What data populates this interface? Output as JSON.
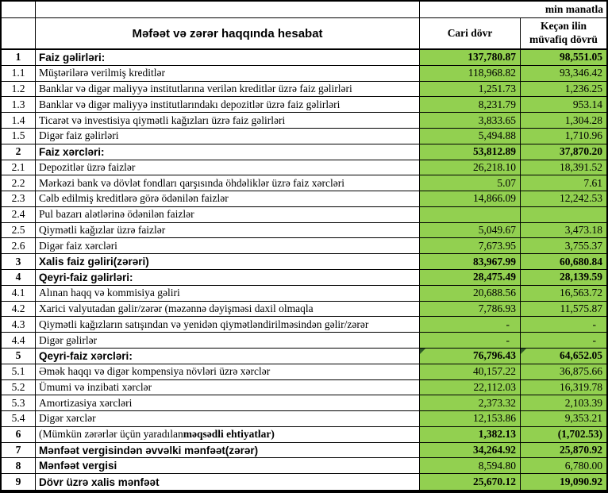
{
  "unit_label": "min manatla",
  "colors": {
    "cell_green": "#92D050",
    "flag_triangle": "#2F5A27",
    "border": "#000000"
  },
  "table": {
    "title_header": "Məfəət və zərər haqqında hesabat",
    "col_current": "Cari dövr",
    "col_previous": "Keçən ilin müvafiq dövrü",
    "rows": [
      {
        "no": "1",
        "label": "Faiz gəlirləri:",
        "cur": "137,780.87",
        "prev": "98,551.05",
        "bl": true,
        "bv": true
      },
      {
        "no": "1.1",
        "label": "Müştərilərə verilmiş kreditlər",
        "cur": "118,968.82",
        "prev": "93,346.42",
        "bl": false,
        "bv": false
      },
      {
        "no": "1.2",
        "label": "Banklar və digər maliyyə institutlarına verilən kreditlər üzrə faiz gəlirləri",
        "cur": "1,251.73",
        "prev": "1,236.25",
        "bl": false,
        "bv": false
      },
      {
        "no": "1.3",
        "label": "Banklar və digər maliyyə institutlarındakı depozitlər üzrə faiz gəlirləri",
        "cur": "8,231.79",
        "prev": "953.14",
        "bl": false,
        "bv": false
      },
      {
        "no": "1.4",
        "label": "Ticarət və investisiya qiymətli kağızları üzrə faiz gəlirləri",
        "cur": "3,833.65",
        "prev": "1,304.28",
        "bl": false,
        "bv": false
      },
      {
        "no": "1.5",
        "label": "Digər faiz gəlirləri",
        "cur": "5,494.88",
        "prev": "1,710.96",
        "bl": false,
        "bv": false
      },
      {
        "no": "2",
        "label": "Faiz xərcləri:",
        "cur": "53,812.89",
        "prev": "37,870.20",
        "bl": true,
        "bv": true
      },
      {
        "no": "2.1",
        "label": "Depozitlər üzrə faizlər",
        "cur": "26,218.10",
        "prev": "18,391.52",
        "bl": false,
        "bv": false
      },
      {
        "no": "2.2",
        "label": "Mərkəzi bank və dövlət fondları qarşısında öhdəliklər üzrə faiz xərcləri",
        "cur": "5.07",
        "prev": "7.61",
        "bl": false,
        "bv": false
      },
      {
        "no": "2.3",
        "label": "Cəlb edilmiş kreditlərə görə ödənilən faizlər",
        "cur": "14,866.09",
        "prev": "12,242.53",
        "bl": false,
        "bv": false
      },
      {
        "no": "2.4",
        "label": "Pul bazarı alətlərinə ödənilən faizlər",
        "cur": "",
        "prev": "",
        "bl": false,
        "bv": false
      },
      {
        "no": "2.5",
        "label": "Qiymətli kağızlar üzrə faizlər",
        "cur": "5,049.67",
        "prev": "3,473.18",
        "bl": false,
        "bv": false
      },
      {
        "no": "2.6",
        "label": "Digər faiz xərcləri",
        "cur": "7,673.95",
        "prev": "3,755.37",
        "bl": false,
        "bv": false
      },
      {
        "no": "3",
        "label": "Xalis faiz gəliri(zərəri)",
        "cur": "83,967.99",
        "prev": "60,680.84",
        "bl": true,
        "bv": true
      },
      {
        "no": "4",
        "label": "Qeyri-faiz gəlirləri:",
        "cur": "28,475.49",
        "prev": "28,139.59",
        "bl": true,
        "bv": true
      },
      {
        "no": "4.1",
        "label": "Alınan haqq və kommisiya gəliri",
        "cur": "20,688.56",
        "prev": "16,563.72",
        "bl": false,
        "bv": false
      },
      {
        "no": "4.2",
        "label": "Xarici valyutadan gəlir/zərər (məzənnə dəyişməsi daxil olmaqla",
        "cur": "7,786.93",
        "prev": "11,575.87",
        "bl": false,
        "bv": false
      },
      {
        "no": "4.3",
        "label": "Qiymətli kağızların satışından və yenidən qiymətləndirilməsindən gəlir/zərər",
        "cur": "-",
        "prev": "-",
        "bl": false,
        "bv": false
      },
      {
        "no": "4.4",
        "label": "Digər gəlirlər",
        "cur": "-",
        "prev": "-",
        "bl": false,
        "bv": false
      },
      {
        "no": "5",
        "label": "Qeyri-faiz xərcləri:",
        "cur": "76,796.43",
        "prev": "64,652.05",
        "bl": true,
        "bv": true,
        "flag": true
      },
      {
        "no": "5.1",
        "label": "Əmək haqqı və digər kompensiya növləri üzrə xərclər",
        "cur": "40,157.22",
        "prev": "36,875.66",
        "bl": false,
        "bv": false
      },
      {
        "no": "5.2",
        "label": "Ümumi və inzibati xərclər",
        "cur": "22,112.03",
        "prev": "16,319.78",
        "bl": false,
        "bv": false
      },
      {
        "no": "5.3",
        "label": "Amortizasiya xərcləri",
        "cur": "2,373.32",
        "prev": "2,103.39",
        "bl": false,
        "bv": false
      },
      {
        "no": "5.4",
        "label": "Digər xərclər",
        "cur": "12,153.86",
        "prev": "9,353.21",
        "bl": false,
        "bv": false
      },
      {
        "no": "6",
        "label": "(Mümkün zərərlər üçün yaradılan ",
        "strong": "məqsədli ehtiyatlar)",
        "cur": "1,382.13",
        "prev": "(1,702.53)",
        "bl": false,
        "bv": true
      },
      {
        "no": "7",
        "label": "Mənfəət vergisindən əvvəlki mənfəət(zərər)",
        "cur": "34,264.92",
        "prev": "25,870.92",
        "bl": true,
        "bv": true
      },
      {
        "no": "8",
        "label": "Mənfəət vergisi",
        "cur": "8,594.80",
        "prev": "6,780.00",
        "bl": true,
        "bv": false
      },
      {
        "no": "9",
        "label": "Dövr üzrə xalis mənfəət",
        "cur": "25,670.12",
        "prev": "19,090.92",
        "bl": true,
        "bv": true
      }
    ]
  }
}
